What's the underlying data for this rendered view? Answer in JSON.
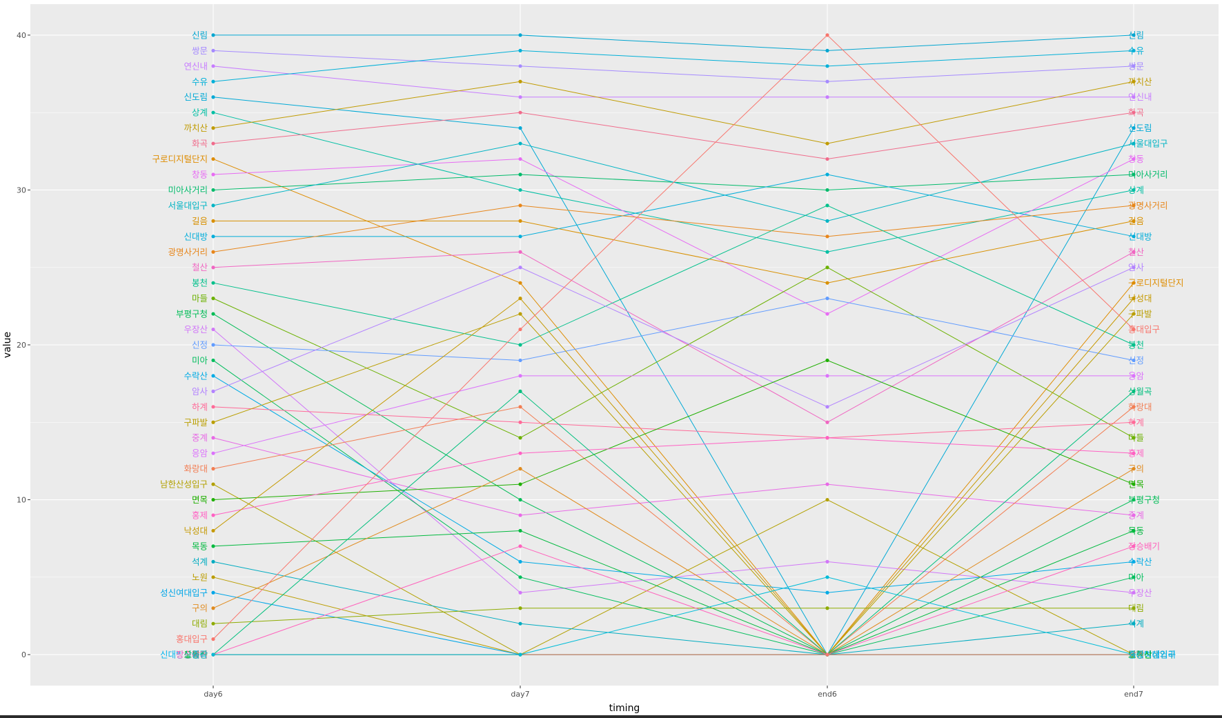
{
  "chart_data": {
    "type": "line",
    "xlabel": "timing",
    "ylabel": "value",
    "categories": [
      "day6",
      "day7",
      "end6",
      "end7"
    ],
    "ylim": [
      -2,
      42
    ],
    "yticks": [
      0,
      10,
      20,
      30,
      40
    ],
    "grid": true,
    "legend": "none",
    "background": "#EBEBEB",
    "series": [
      {
        "name": "신림",
        "color": "#00A5D0",
        "values": [
          40,
          40,
          39,
          40
        ]
      },
      {
        "name": "쌍문",
        "color": "#A58AFF",
        "values": [
          39,
          38,
          37,
          38
        ]
      },
      {
        "name": "연신내",
        "color": "#C77CFF",
        "values": [
          38,
          36,
          36,
          36
        ]
      },
      {
        "name": "수유",
        "color": "#00B0D8",
        "values": [
          37,
          39,
          38,
          39
        ]
      },
      {
        "name": "신도림",
        "color": "#00A9D6",
        "values": [
          36,
          34,
          0,
          34
        ]
      },
      {
        "name": "상계",
        "color": "#00BFA4",
        "values": [
          35,
          30,
          26,
          30
        ]
      },
      {
        "name": "까치산",
        "color": "#C09B00",
        "values": [
          34,
          37,
          33,
          37
        ]
      },
      {
        "name": "화곡",
        "color": "#F06B8B",
        "values": [
          33,
          35,
          32,
          35
        ]
      },
      {
        "name": "구로디지털단지",
        "color": "#DE8C00",
        "values": [
          32,
          24,
          0,
          24
        ]
      },
      {
        "name": "창동",
        "color": "#E76BF3",
        "values": [
          31,
          32,
          22,
          32
        ]
      },
      {
        "name": "미아사거리",
        "color": "#00BA6A",
        "values": [
          30,
          31,
          30,
          31
        ]
      },
      {
        "name": "서울대입구",
        "color": "#00B4C4",
        "values": [
          29,
          33,
          28,
          33
        ]
      },
      {
        "name": "길음",
        "color": "#D89000",
        "values": [
          28,
          28,
          24,
          28
        ]
      },
      {
        "name": "신대방",
        "color": "#00ADDA",
        "values": [
          27,
          27,
          31,
          27
        ]
      },
      {
        "name": "광명사거리",
        "color": "#E7861B",
        "values": [
          26,
          29,
          27,
          29
        ]
      },
      {
        "name": "철산",
        "color": "#F066C2",
        "values": [
          25,
          26,
          15,
          26
        ]
      },
      {
        "name": "봉천",
        "color": "#00C08B",
        "values": [
          24,
          20,
          29,
          20
        ]
      },
      {
        "name": "마들",
        "color": "#6BB100",
        "values": [
          23,
          14,
          25,
          14
        ]
      },
      {
        "name": "부평구청",
        "color": "#00BC56",
        "values": [
          22,
          10,
          0,
          10
        ]
      },
      {
        "name": "우장산",
        "color": "#D177F8",
        "values": [
          21,
          4,
          6,
          4
        ]
      },
      {
        "name": "신정",
        "color": "#619CFF",
        "values": [
          20,
          19,
          23,
          19
        ]
      },
      {
        "name": "미아",
        "color": "#00BD5C",
        "values": [
          19,
          5,
          0,
          5
        ]
      },
      {
        "name": "수락산",
        "color": "#00ABE5",
        "values": [
          18,
          6,
          4,
          6
        ]
      },
      {
        "name": "암사",
        "color": "#B383FF",
        "values": [
          17,
          25,
          16,
          25
        ]
      },
      {
        "name": "하계",
        "color": "#FF6A98",
        "values": [
          16,
          15,
          14,
          15
        ]
      },
      {
        "name": "구파발",
        "color": "#BA9E00",
        "values": [
          15,
          22,
          0,
          22
        ]
      },
      {
        "name": "중계",
        "color": "#E86AE6",
        "values": [
          14,
          9,
          11,
          9
        ]
      },
      {
        "name": "응암",
        "color": "#DB72FB",
        "values": [
          13,
          18,
          18,
          18
        ]
      },
      {
        "name": "화랑대",
        "color": "#F27D52",
        "values": [
          12,
          16,
          0,
          16
        ]
      },
      {
        "name": "남한산성입구",
        "color": "#B2A000",
        "values": [
          11,
          0,
          10,
          0
        ]
      },
      {
        "name": "면목",
        "color": "#1FAF00",
        "values": [
          10,
          11,
          19,
          11
        ]
      },
      {
        "name": "홍제",
        "color": "#FF61C3",
        "values": [
          9,
          13,
          14,
          13
        ]
      },
      {
        "name": "낙성대",
        "color": "#C59900",
        "values": [
          8,
          23,
          0,
          23
        ]
      },
      {
        "name": "목동",
        "color": "#00B93E",
        "values": [
          7,
          8,
          0,
          8
        ]
      },
      {
        "name": "석계",
        "color": "#00ACC1",
        "values": [
          6,
          2,
          0,
          2
        ]
      },
      {
        "name": "노원",
        "color": "#BB9D00",
        "values": [
          5,
          0,
          0,
          0
        ]
      },
      {
        "name": "성신여대입구",
        "color": "#00A6E8",
        "values": [
          4,
          0,
          0,
          0
        ]
      },
      {
        "name": "구의",
        "color": "#E08B1F",
        "values": [
          3,
          12,
          0,
          12
        ]
      },
      {
        "name": "대림",
        "color": "#8EAB00",
        "values": [
          2,
          3,
          3,
          3
        ]
      },
      {
        "name": "홍대입구",
        "color": "#F8766D",
        "values": [
          1,
          21,
          40,
          21
        ]
      },
      {
        "name": "신대방삼거리",
        "color": "#00B5EE",
        "values": [
          0,
          0,
          0,
          0
        ]
      },
      {
        "name": "도봉산",
        "color": "#00B815",
        "values": [
          0,
          0,
          0,
          0
        ]
      },
      {
        "name": "장승배기",
        "color": "#FF62BC",
        "values": [
          0,
          7,
          0,
          7
        ]
      },
      {
        "name": "상월곡",
        "color": "#00BF7D",
        "values": [
          0,
          17,
          0,
          17
        ]
      },
      {
        "name": "강변",
        "color": "#F8766D",
        "values": [
          0,
          0,
          0,
          0
        ]
      },
      {
        "name": "중랑",
        "color": "#00BCD8",
        "values": [
          0,
          0,
          5,
          0
        ]
      }
    ]
  }
}
